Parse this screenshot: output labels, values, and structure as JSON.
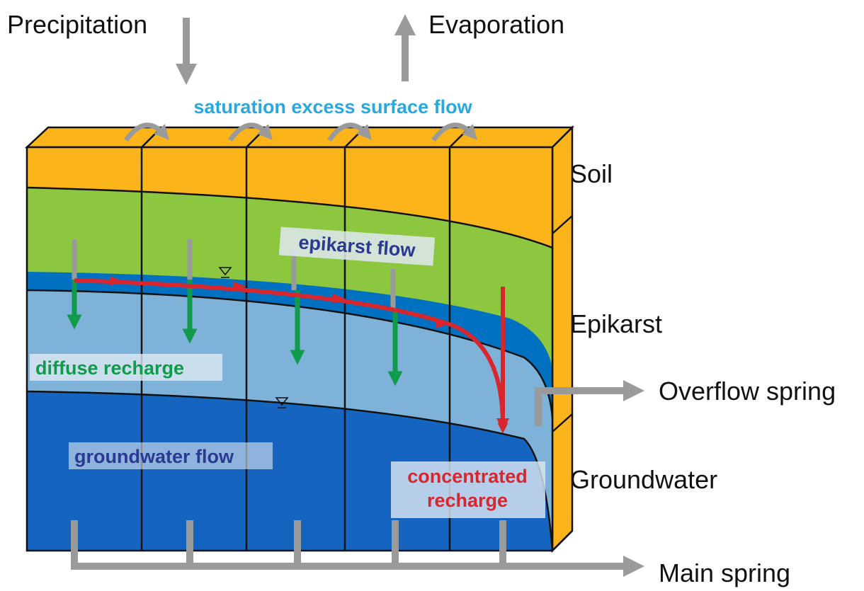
{
  "inputs": {
    "precipitation": "Precipitation",
    "evaporation": "Evaporation"
  },
  "flows": {
    "surface": "saturation excess surface flow",
    "epikarst": "epikarst flow",
    "diffuse": "diffuse recharge",
    "groundwater": "groundwater flow",
    "concentrated": [
      "concentrated",
      "recharge"
    ]
  },
  "layers": {
    "soil": "Soil",
    "epikarst": "Epikarst",
    "groundwater": "Groundwater"
  },
  "outputs": {
    "overflow": "Overflow spring",
    "main": "Main spring"
  }
}
